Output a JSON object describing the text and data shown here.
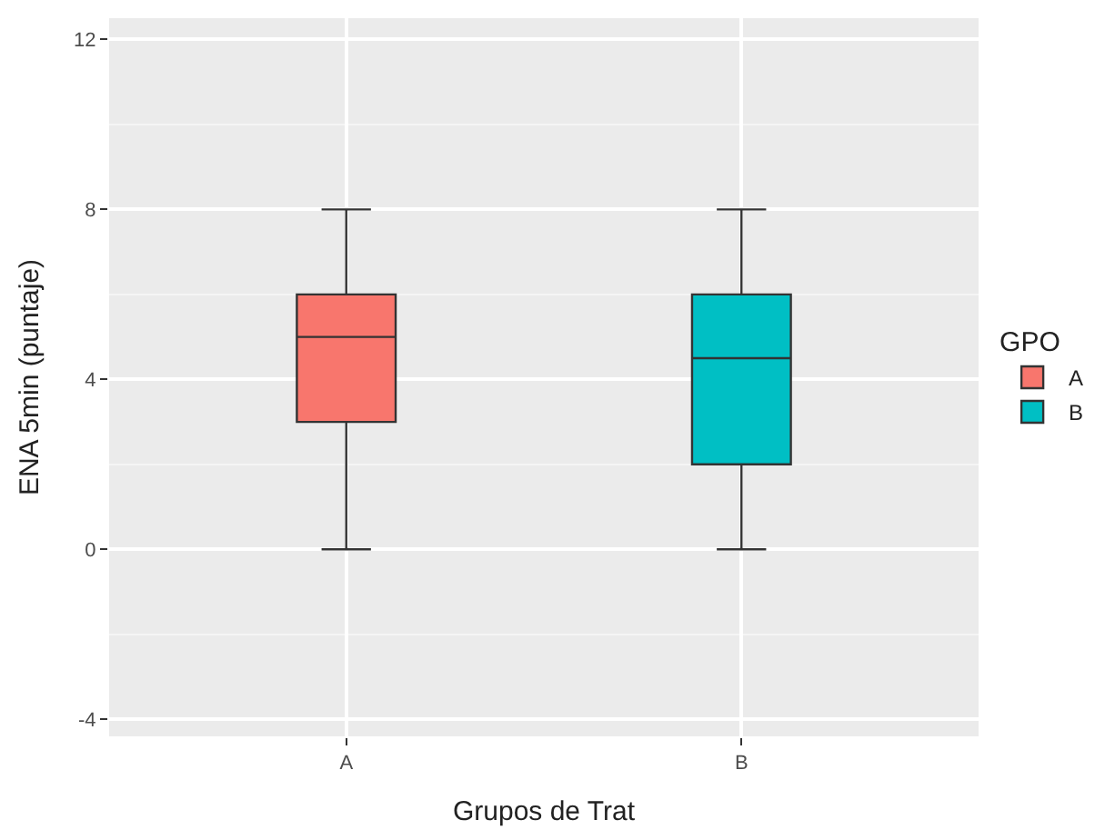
{
  "chart_data": {
    "type": "box",
    "xlabel": "Grupos de Trat",
    "ylabel": "ENA 5min (puntaje)",
    "legend_title": "GPO",
    "categories": [
      "A",
      "B"
    ],
    "series": [
      {
        "name": "A",
        "color": "#f8766d",
        "boxes": [
          {
            "low": 0,
            "q1": 3,
            "median": 5,
            "q3": 6,
            "high": 8
          },
          null
        ]
      },
      {
        "name": "B",
        "color": "#00bfc4",
        "boxes": [
          null,
          {
            "low": 0,
            "q1": 2,
            "median": 4.5,
            "q3": 6,
            "high": 8
          }
        ]
      }
    ],
    "ylim": [
      -4.4,
      12.5
    ],
    "yticks": [
      -4,
      0,
      4,
      8,
      12
    ],
    "grid": true,
    "legend": "right"
  }
}
